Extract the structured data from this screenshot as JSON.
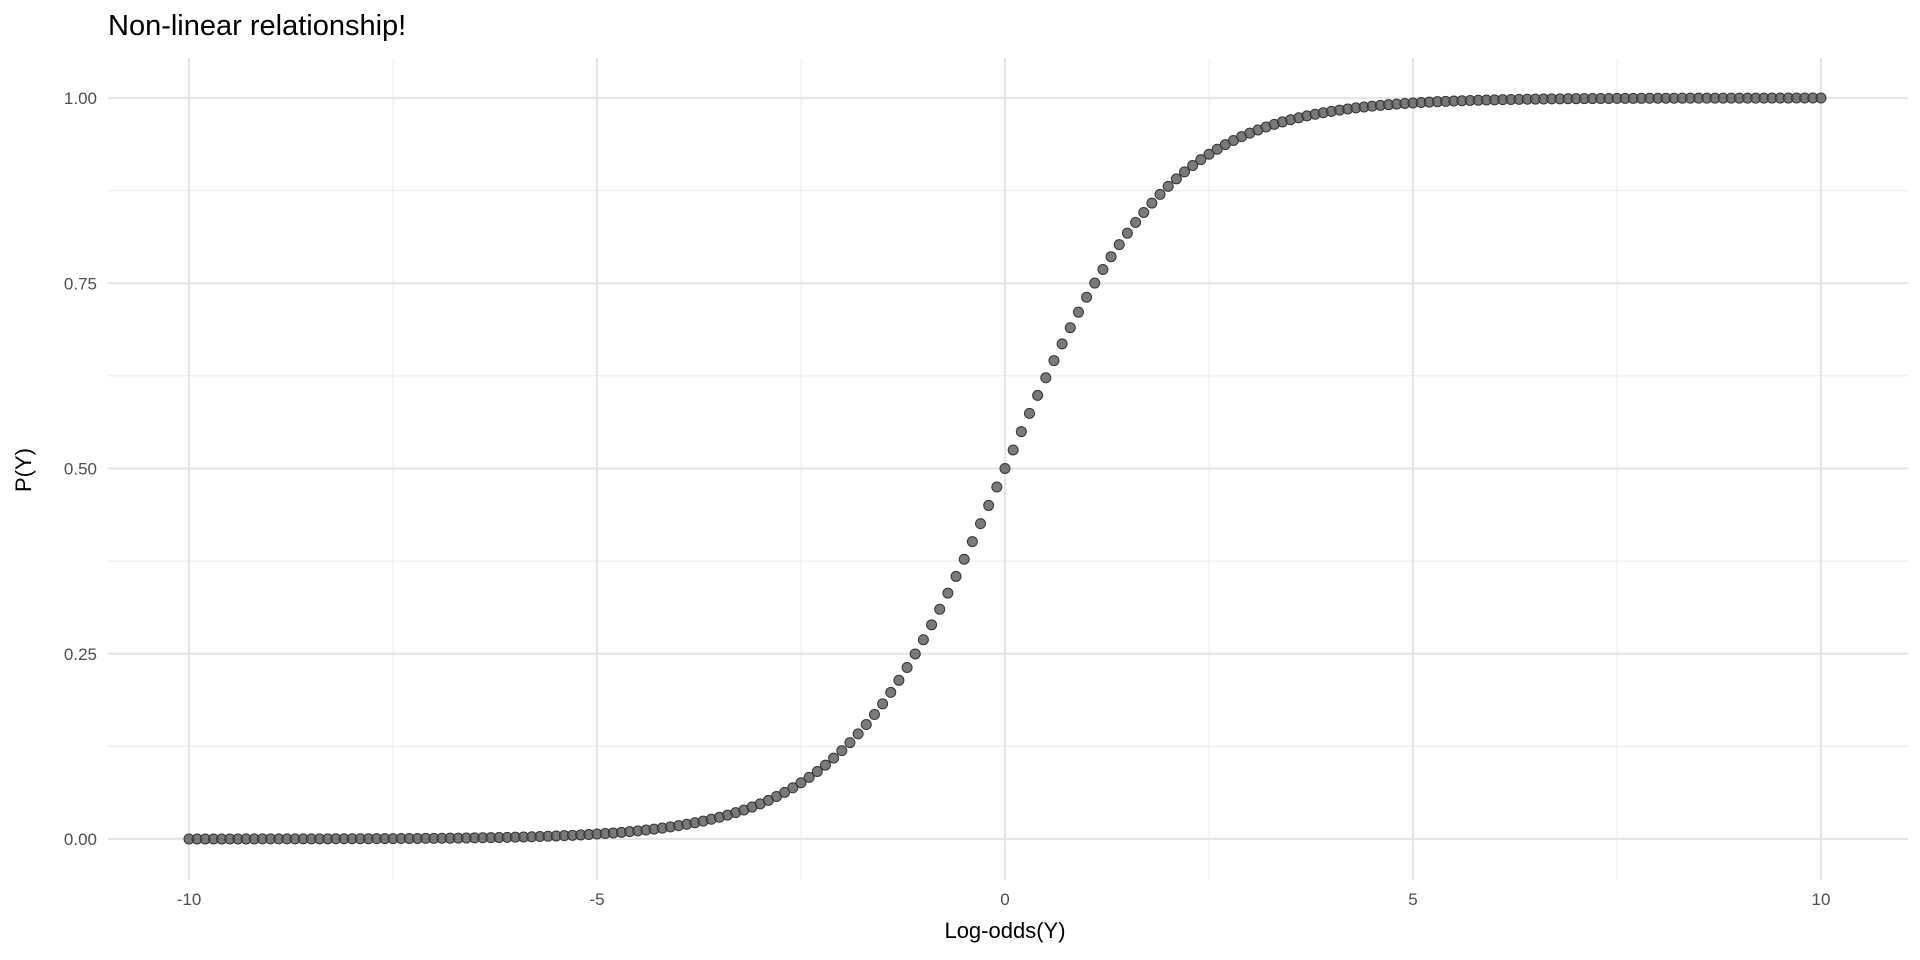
{
  "chart_data": {
    "type": "scatter",
    "title": "Non-linear relationship!",
    "xlabel": "Log-odds(Y)",
    "ylabel": "P(Y)",
    "xlim": [
      -10,
      10
    ],
    "ylim": [
      0,
      1
    ],
    "x_ticks": [
      -10,
      -5,
      0,
      5,
      10
    ],
    "x_tick_labels": [
      "-10",
      "-5",
      "0",
      "5",
      "10"
    ],
    "y_ticks": [
      0,
      0.25,
      0.5,
      0.75,
      1
    ],
    "y_tick_labels": [
      "0.00",
      "0.25",
      "0.50",
      "0.75",
      "1.00"
    ],
    "grid": true,
    "series": [
      {
        "x_range": {
          "from": -10,
          "to": 10,
          "step": 0.1
        },
        "function": "y = 1 / (1 + exp(-x))",
        "color": "#595959"
      }
    ]
  }
}
